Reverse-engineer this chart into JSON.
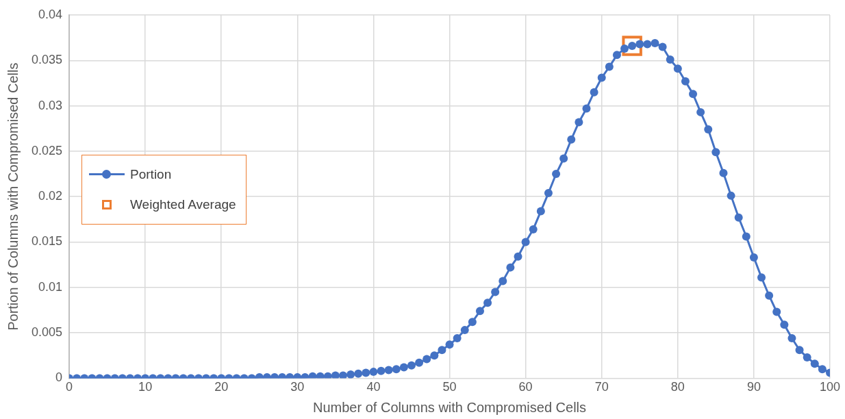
{
  "chart_data": {
    "type": "line",
    "xlabel": "Number of Columns with Compromised Cells",
    "ylabel": "Portion of Columns with Compromised Cells",
    "x": [
      0,
      1,
      2,
      3,
      4,
      5,
      6,
      7,
      8,
      9,
      10,
      11,
      12,
      13,
      14,
      15,
      16,
      17,
      18,
      19,
      20,
      21,
      22,
      23,
      24,
      25,
      26,
      27,
      28,
      29,
      30,
      31,
      32,
      33,
      34,
      35,
      36,
      37,
      38,
      39,
      40,
      41,
      42,
      43,
      44,
      45,
      46,
      47,
      48,
      49,
      50,
      51,
      52,
      53,
      54,
      55,
      56,
      57,
      58,
      59,
      60,
      61,
      62,
      63,
      64,
      65,
      66,
      67,
      68,
      69,
      70,
      71,
      72,
      73,
      74,
      75,
      76,
      77,
      78,
      79,
      80,
      81,
      82,
      83,
      84,
      85,
      86,
      87,
      88,
      89,
      90,
      91,
      92,
      93,
      94,
      95,
      96,
      97,
      98,
      99,
      100
    ],
    "series": [
      {
        "name": "Portion",
        "color": "#4472c4",
        "marker": "circle",
        "values": [
          0,
          0,
          0,
          0,
          0,
          0,
          0,
          0,
          0,
          0,
          0,
          0,
          0,
          0,
          0,
          0,
          0,
          0,
          0,
          0,
          0,
          0,
          0,
          0,
          0,
          0.0001,
          0.0001,
          0.0001,
          0.0001,
          0.0001,
          0.0001,
          0.0001,
          0.0002,
          0.0002,
          0.0002,
          0.0003,
          0.0003,
          0.0004,
          0.0005,
          0.0006,
          0.0007,
          0.0008,
          0.0009,
          0.001,
          0.0012,
          0.0014,
          0.0017,
          0.0021,
          0.0025,
          0.0031,
          0.0037,
          0.0044,
          0.0053,
          0.0062,
          0.0074,
          0.0083,
          0.0095,
          0.0107,
          0.0122,
          0.0134,
          0.015,
          0.0164,
          0.0184,
          0.0204,
          0.0225,
          0.0242,
          0.0263,
          0.0282,
          0.0297,
          0.0315,
          0.0331,
          0.0343,
          0.0356,
          0.0363,
          0.0366,
          0.0368,
          0.0368,
          0.0369,
          0.0365,
          0.0351,
          0.0341,
          0.0327,
          0.0313,
          0.0293,
          0.0274,
          0.0249,
          0.0226,
          0.0201,
          0.0177,
          0.0156,
          0.0133,
          0.0111,
          0.0091,
          0.0073,
          0.0059,
          0.0044,
          0.0031,
          0.0023,
          0.0016,
          0.001,
          0.0006
        ]
      },
      {
        "name": "Weighted Average",
        "type": "scatter",
        "color": "#ed7d31",
        "marker": "square",
        "x": [
          74
        ],
        "values": [
          0.0366
        ]
      }
    ],
    "xlim": [
      0,
      100
    ],
    "xticks": [
      0,
      10,
      20,
      30,
      40,
      50,
      60,
      70,
      80,
      90,
      100
    ],
    "ylim": [
      0,
      0.04
    ],
    "yticks": [
      0,
      0.005,
      0.01,
      0.015,
      0.02,
      0.025,
      0.03,
      0.035,
      0.04
    ],
    "grid": true,
    "legend": "left"
  }
}
